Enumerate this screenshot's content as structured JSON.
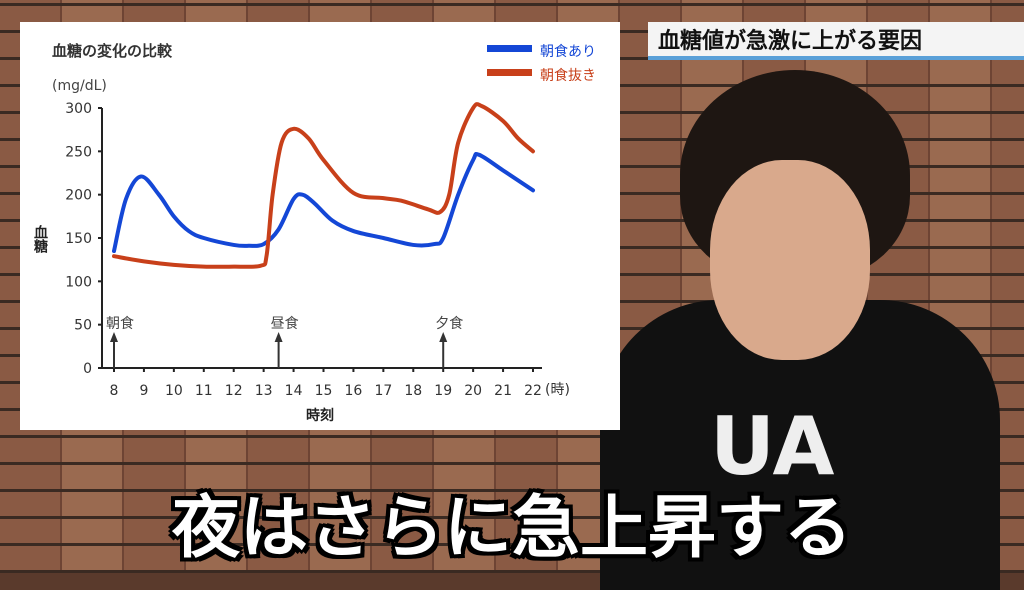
{
  "banner_title": "血糖値が急激に上がる要因",
  "caption": "夜はさらに急上昇する",
  "shirt_logo": "UA",
  "chart_data": {
    "type": "line",
    "title": "血糖の変化の比較",
    "unit": "(mg/dL)",
    "ylabel": "血糖",
    "xlabel": "時刻",
    "x_unit": "(時)",
    "xlim": [
      8,
      22
    ],
    "ylim": [
      0,
      300
    ],
    "xticks": [
      8,
      9,
      10,
      11,
      12,
      13,
      14,
      15,
      16,
      17,
      18,
      19,
      20,
      21,
      22
    ],
    "yticks": [
      0,
      50,
      100,
      150,
      200,
      250,
      300
    ],
    "grid": false,
    "legend": "top-right",
    "annotations": [
      {
        "label": "朝食",
        "x": 8
      },
      {
        "label": "昼食",
        "x": 13.5
      },
      {
        "label": "夕食",
        "x": 19
      }
    ],
    "series": [
      {
        "name": "朝食あり",
        "color": "#1447d6",
        "x": [
          8,
          8.4,
          8.9,
          9.5,
          10,
          10.5,
          11,
          12,
          12.5,
          13,
          13.5,
          14,
          14.3,
          14.7,
          15.3,
          16,
          17,
          18,
          18.7,
          19,
          19.5,
          20,
          20.2,
          21,
          22
        ],
        "y": [
          135,
          195,
          221,
          200,
          175,
          158,
          150,
          142,
          141,
          143,
          160,
          195,
          200,
          190,
          170,
          158,
          150,
          142,
          143,
          150,
          200,
          240,
          246,
          228,
          205
        ]
      },
      {
        "name": "朝食抜き",
        "color": "#c8401a",
        "x": [
          8,
          9,
          10,
          11,
          12,
          12.9,
          13.1,
          13.3,
          13.6,
          14,
          14.5,
          15,
          16,
          17,
          17.6,
          18.5,
          18.9,
          19.2,
          19.5,
          20,
          20.3,
          21,
          21.5,
          22
        ],
        "y": [
          129,
          123,
          119,
          117,
          117,
          118,
          130,
          200,
          260,
          276,
          265,
          240,
          202,
          196,
          193,
          183,
          180,
          200,
          260,
          300,
          302,
          285,
          265,
          250
        ]
      }
    ]
  }
}
